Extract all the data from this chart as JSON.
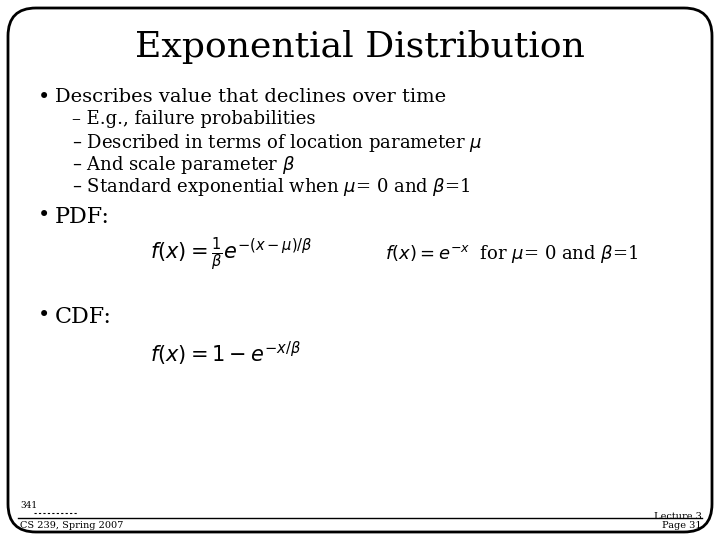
{
  "title": "Exponential Distribution",
  "background_color": "#ffffff",
  "border_color": "#000000",
  "text_color": "#000000",
  "title_fontsize": 26,
  "body_fontsize": 14,
  "sub_fontsize": 13,
  "formula_fontsize": 14,
  "bullet1": "Describes value that declines over time",
  "sub1": "E.g., failure probabilities",
  "sub2": "Described in terms of location parameter $\\mu$",
  "sub3": "And scale parameter $\\beta$",
  "sub4": "Standard exponential when $\\mu$= 0 and $\\beta$=1",
  "bullet2": "PDF:",
  "pdf_formula1": "$f(x) = \\frac{1}{\\beta}e^{-(x-\\mu)/\\beta}$",
  "pdf_formula2": "$f(x) = e^{-x}$",
  "pdf_formula2_note": "for $\\mu$= 0 and $\\beta$=1",
  "bullet3": "CDF:",
  "cdf_formula": "$f(x) = 1 - e^{-x/\\beta}$",
  "footer_left_small": "341",
  "footer_left": "CS 239, Spring 2007",
  "footer_right_line1": "Lecture 3",
  "footer_right_line2": "Page 31"
}
